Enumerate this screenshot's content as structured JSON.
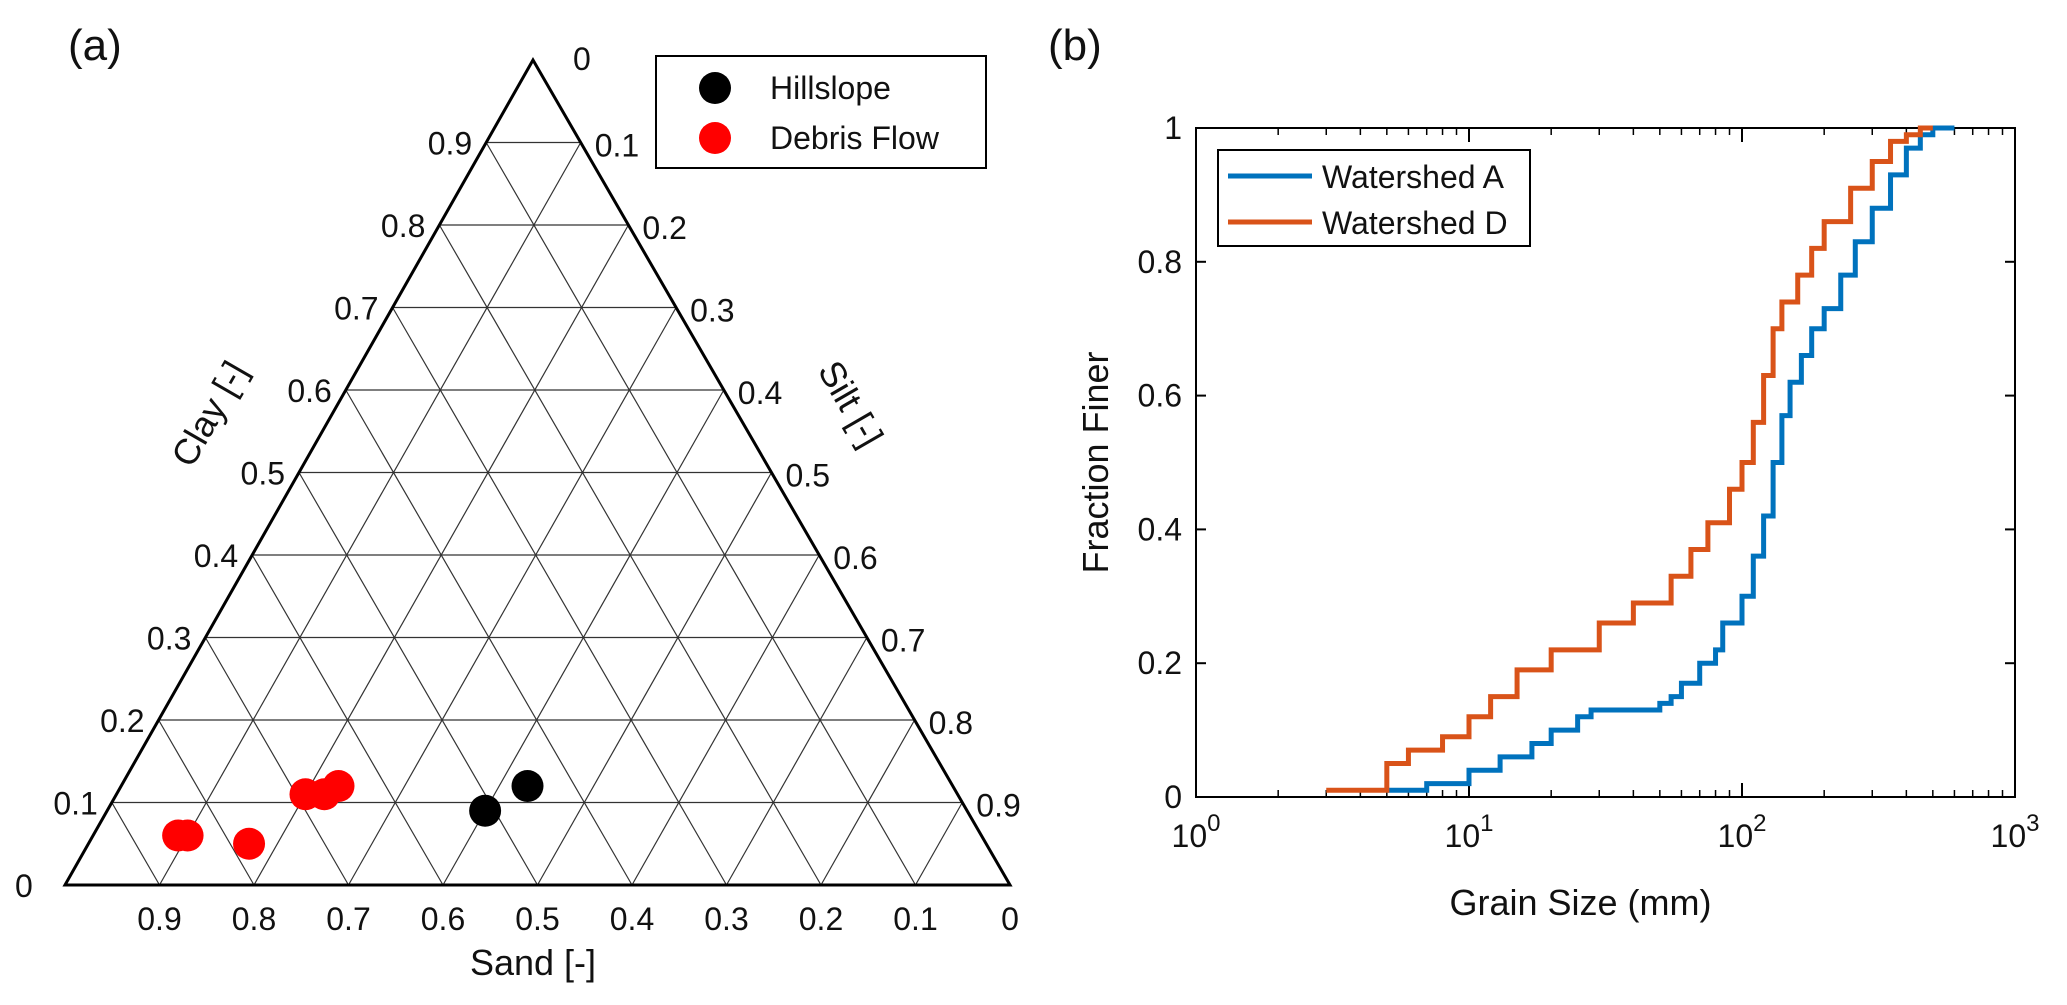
{
  "chart_data": [
    {
      "panel_label": "(a)",
      "type": "scatter",
      "subtype": "ternary",
      "axes": {
        "sand": {
          "label": "Sand [-]",
          "ticks": [
            "0.9",
            "0.8",
            "0.7",
            "0.6",
            "0.5",
            "0.4",
            "0.3",
            "0.2",
            "0.1",
            "0"
          ]
        },
        "silt": {
          "label": "Silt [-]",
          "ticks": [
            "0.1",
            "0.2",
            "0.3",
            "0.4",
            "0.5",
            "0.6",
            "0.7",
            "0.8",
            "0.9"
          ]
        },
        "clay": {
          "label": "Clay [-]",
          "ticks": [
            "0",
            "0.1",
            "0.2",
            "0.3",
            "0.4",
            "0.5",
            "0.6",
            "0.7",
            "0.8",
            "0.9"
          ]
        }
      },
      "corner_labels": {
        "top": "0",
        "bottom_left": "0"
      },
      "grid": true,
      "legend": {
        "placement": "top-right",
        "entries": [
          "Hillslope",
          "Debris Flow"
        ]
      },
      "series": [
        {
          "name": "Hillslope",
          "color": "#000000",
          "points": [
            {
              "sand": 0.51,
              "silt": 0.4,
              "clay": 0.09
            },
            {
              "sand": 0.45,
              "silt": 0.43,
              "clay": 0.12
            }
          ]
        },
        {
          "name": "Debris Flow",
          "color": "#ff0000",
          "points": [
            {
              "sand": 0.85,
              "silt": 0.09,
              "clay": 0.06
            },
            {
              "sand": 0.84,
              "silt": 0.1,
              "clay": 0.06
            },
            {
              "sand": 0.78,
              "silt": 0.17,
              "clay": 0.05
            },
            {
              "sand": 0.69,
              "silt": 0.2,
              "clay": 0.11
            },
            {
              "sand": 0.67,
              "silt": 0.22,
              "clay": 0.11
            },
            {
              "sand": 0.65,
              "silt": 0.23,
              "clay": 0.12
            }
          ]
        }
      ]
    },
    {
      "panel_label": "(b)",
      "type": "line",
      "subtype": "step",
      "xlabel": "Grain Size (mm)",
      "ylabel": "Fraction Finer",
      "xscale": "log",
      "xlim": [
        1,
        1000
      ],
      "ylim": [
        0,
        1
      ],
      "x_ticks": [
        {
          "base": "10",
          "exp": "0"
        },
        {
          "base": "10",
          "exp": "1"
        },
        {
          "base": "10",
          "exp": "2"
        },
        {
          "base": "10",
          "exp": "3"
        }
      ],
      "y_ticks": [
        "0",
        "0.2",
        "0.4",
        "0.6",
        "0.8",
        "1"
      ],
      "legend": {
        "placement": "top-left",
        "entries": [
          "Watershed A",
          "Watershed D"
        ]
      },
      "series": [
        {
          "name": "Watershed A",
          "color": "#0072bd",
          "x": [
            5,
            7,
            10,
            13,
            17,
            20,
            25,
            28,
            50,
            55,
            60,
            70,
            80,
            85,
            100,
            110,
            120,
            130,
            140,
            150,
            165,
            180,
            200,
            230,
            260,
            300,
            350,
            400,
            450,
            500,
            600
          ],
          "y": [
            0.01,
            0.02,
            0.04,
            0.06,
            0.08,
            0.1,
            0.12,
            0.13,
            0.14,
            0.15,
            0.17,
            0.2,
            0.22,
            0.26,
            0.3,
            0.36,
            0.42,
            0.5,
            0.57,
            0.62,
            0.66,
            0.7,
            0.73,
            0.78,
            0.83,
            0.88,
            0.93,
            0.97,
            0.99,
            1.0,
            1.0
          ]
        },
        {
          "name": "Watershed D",
          "color": "#d95319",
          "x": [
            3,
            5,
            6,
            8,
            10,
            12,
            15,
            20,
            30,
            40,
            55,
            65,
            75,
            90,
            100,
            110,
            120,
            130,
            140,
            160,
            180,
            200,
            250,
            300,
            350,
            400,
            450,
            500
          ],
          "y": [
            0.01,
            0.05,
            0.07,
            0.09,
            0.12,
            0.15,
            0.19,
            0.22,
            0.26,
            0.29,
            0.33,
            0.37,
            0.41,
            0.46,
            0.5,
            0.56,
            0.63,
            0.7,
            0.74,
            0.78,
            0.82,
            0.86,
            0.91,
            0.95,
            0.98,
            0.99,
            1.0,
            1.0
          ]
        }
      ]
    }
  ]
}
